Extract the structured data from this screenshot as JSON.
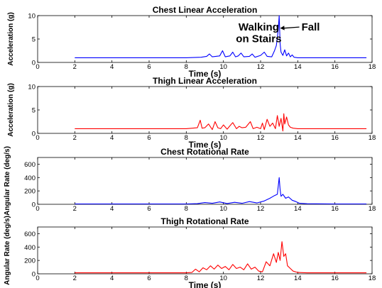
{
  "chart_data": [
    {
      "type": "line",
      "title": "Chest Linear Acceleration",
      "xlabel": "Time (s)",
      "ylabel": "Acceleration (g)",
      "xlim": [
        0,
        18
      ],
      "ylim": [
        0,
        10
      ],
      "xticks": [
        0,
        2,
        4,
        6,
        8,
        10,
        12,
        14,
        16,
        18
      ],
      "yticks": [
        0,
        5,
        10
      ],
      "color": "#0000ff",
      "series": [
        {
          "x": [
            2.0,
            4.0,
            6.0,
            8.0,
            8.8,
            9.1,
            9.25,
            9.4,
            9.8,
            9.95,
            10.1,
            10.35,
            10.5,
            10.65,
            10.8,
            10.95,
            11.1,
            11.4,
            11.55,
            11.7,
            12.0,
            12.2,
            12.35,
            12.6,
            12.75,
            12.85,
            12.95,
            13.0,
            13.05,
            13.1,
            13.2,
            13.3,
            13.4,
            13.5,
            13.6,
            13.7,
            13.8,
            14.0,
            14.5,
            16.0,
            17.7
          ],
          "y": [
            1.0,
            1.0,
            1.0,
            1.0,
            1.1,
            1.3,
            1.8,
            1.2,
            1.4,
            2.5,
            1.2,
            1.4,
            2.2,
            1.2,
            1.4,
            2.0,
            1.2,
            1.3,
            1.8,
            1.1,
            1.5,
            2.2,
            1.3,
            1.2,
            2.5,
            3.6,
            7.0,
            10.0,
            4.0,
            2.2,
            1.5,
            2.7,
            1.4,
            2.0,
            1.2,
            1.6,
            1.1,
            1.0,
            1.0,
            1.0,
            1.0
          ]
        }
      ],
      "annotations": [
        {
          "text": "Walking",
          "x": 11.9,
          "y": 6.8
        },
        {
          "text": "on Stairs",
          "x": 11.9,
          "y": 4.3
        },
        {
          "text": "Fall",
          "x": 14.2,
          "y": 6.8,
          "arrow_to": [
            13.05,
            7.3
          ]
        }
      ]
    },
    {
      "type": "line",
      "title": "Thigh Linear Acceleration",
      "xlabel": "Time (s)",
      "ylabel": "Acceleration (g)",
      "xlim": [
        0,
        18
      ],
      "ylim": [
        0,
        10
      ],
      "xticks": [
        0,
        2,
        4,
        6,
        8,
        10,
        12,
        14,
        16,
        18
      ],
      "yticks": [
        0,
        5,
        10
      ],
      "color": "#ff0000",
      "series": [
        {
          "x": [
            2.0,
            4.0,
            6.0,
            8.0,
            8.6,
            8.75,
            8.85,
            9.0,
            9.2,
            9.4,
            9.55,
            9.7,
            9.85,
            10.0,
            10.2,
            10.35,
            10.5,
            10.7,
            10.85,
            11.0,
            11.2,
            11.45,
            11.6,
            11.8,
            12.0,
            12.1,
            12.2,
            12.35,
            12.5,
            12.65,
            12.8,
            12.9,
            13.0,
            13.1,
            13.2,
            13.25,
            13.3,
            13.4,
            13.5,
            13.6,
            13.75,
            14.0,
            14.5,
            16.0,
            17.7
          ],
          "y": [
            1.0,
            1.0,
            1.0,
            1.0,
            1.2,
            2.8,
            1.1,
            1.2,
            2.0,
            0.8,
            2.5,
            1.2,
            1.0,
            1.8,
            0.9,
            1.6,
            2.3,
            1.0,
            1.5,
            1.2,
            1.3,
            2.5,
            1.0,
            1.3,
            1.0,
            2.2,
            0.8,
            3.0,
            1.5,
            2.2,
            1.0,
            3.8,
            1.5,
            3.2,
            0.5,
            4.2,
            2.0,
            3.5,
            1.8,
            1.3,
            1.1,
            1.0,
            1.0,
            1.0,
            1.0
          ]
        }
      ]
    },
    {
      "type": "line",
      "title": "Chest Rotational Rate",
      "xlabel": "",
      "ylabel": "Angular Rate (deg/s)",
      "xlim": [
        0,
        18
      ],
      "ylim": [
        0,
        700
      ],
      "xticks": [
        0,
        2,
        4,
        6,
        8,
        10,
        12,
        14,
        16,
        18
      ],
      "yticks": [
        0,
        200,
        400,
        600
      ],
      "color": "#0000ff",
      "series": [
        {
          "x": [
            2.0,
            4.0,
            6.0,
            8.0,
            8.6,
            9.0,
            9.4,
            9.8,
            10.2,
            10.6,
            11.0,
            11.4,
            11.8,
            12.2,
            12.5,
            12.75,
            12.9,
            13.0,
            13.05,
            13.1,
            13.2,
            13.35,
            13.5,
            13.7,
            13.9,
            14.1,
            14.5,
            16.0,
            17.7
          ],
          "y": [
            5,
            5,
            5,
            5,
            10,
            25,
            15,
            35,
            12,
            30,
            15,
            40,
            20,
            50,
            90,
            130,
            150,
            400,
            220,
            120,
            150,
            90,
            110,
            60,
            40,
            15,
            8,
            5,
            5
          ]
        }
      ]
    },
    {
      "type": "line",
      "title": "Thigh Rotational Rate",
      "xlabel": "Time (s)",
      "ylabel": "Angular Rate (deg/s)",
      "xlim": [
        0,
        18
      ],
      "ylim": [
        0,
        700
      ],
      "xticks": [
        0,
        2,
        4,
        6,
        8,
        10,
        12,
        14,
        16,
        18
      ],
      "yticks": [
        0,
        200,
        400,
        600
      ],
      "color": "#ff0000",
      "series": [
        {
          "x": [
            2.0,
            4.0,
            6.0,
            8.0,
            8.3,
            8.5,
            8.7,
            8.9,
            9.1,
            9.3,
            9.5,
            9.7,
            9.9,
            10.1,
            10.3,
            10.5,
            10.7,
            10.9,
            11.1,
            11.3,
            11.5,
            11.7,
            11.9,
            12.1,
            12.3,
            12.5,
            12.7,
            12.85,
            12.95,
            13.05,
            13.15,
            13.25,
            13.35,
            13.45,
            13.6,
            13.75,
            14.0,
            14.5,
            16.0,
            17.7
          ],
          "y": [
            15,
            15,
            15,
            15,
            20,
            70,
            30,
            90,
            60,
            120,
            70,
            130,
            80,
            110,
            60,
            140,
            80,
            100,
            60,
            150,
            70,
            100,
            40,
            30,
            180,
            120,
            300,
            170,
            320,
            200,
            480,
            260,
            300,
            120,
            80,
            40,
            20,
            15,
            15,
            15
          ]
        }
      ]
    }
  ]
}
